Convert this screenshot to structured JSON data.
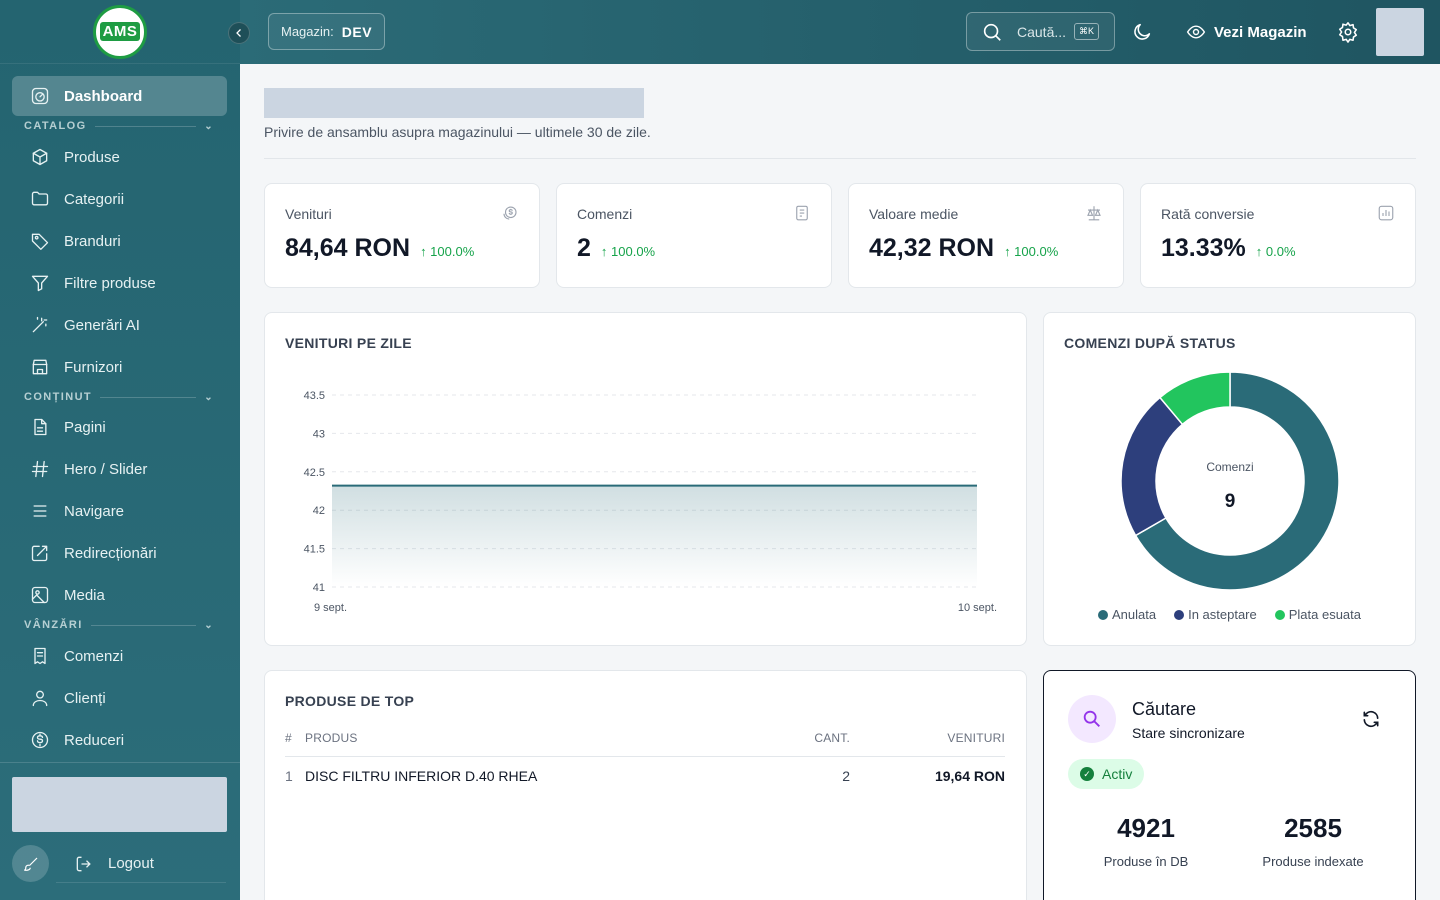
{
  "sidebar": {
    "logo_text": "AMS",
    "items": {
      "dashboard": "Dashboard",
      "products": "Produse",
      "categories": "Categorii",
      "brands": "Branduri",
      "filters": "Filtre produse",
      "ai": "Generări AI",
      "suppliers": "Furnizori",
      "pages": "Pagini",
      "hero": "Hero / Slider",
      "navigation": "Navigare",
      "redirects": "Redirecționări",
      "media": "Media",
      "orders": "Comenzi",
      "clients": "Clienți",
      "discounts": "Reduceri"
    },
    "sections": {
      "catalog": "CATALOG",
      "content": "CONȚINUT",
      "sales": "VÂNZĂRI"
    },
    "logout": "Logout"
  },
  "header": {
    "store_label": "Magazin:",
    "store_value": "DEV",
    "search_placeholder": "Caută...",
    "search_shortcut": "⌘K",
    "view_store": "Vezi Magazin"
  },
  "page": {
    "subtitle": "Privire de ansamblu asupra magazinului — ultimele 30 de zile."
  },
  "stats": [
    {
      "label": "Venituri",
      "value": "84,64 RON",
      "delta": "↑ 100.0%",
      "icon": "money-icon"
    },
    {
      "label": "Comenzi",
      "value": "2",
      "delta": "↑ 100.0%",
      "icon": "receipt-icon"
    },
    {
      "label": "Valoare medie",
      "value": "42,32 RON",
      "delta": "↑ 100.0%",
      "icon": "scale-icon"
    },
    {
      "label": "Rată conversie",
      "value": "13.33%",
      "delta": "↑ 0.0%",
      "icon": "bar-chart-icon"
    }
  ],
  "chart_data": [
    {
      "type": "area",
      "title": "VENITURI PE ZILE",
      "x": [
        "9 sept.",
        "10 sept."
      ],
      "values": [
        42.32,
        42.32
      ],
      "y_ticks": [
        "43.5",
        "43",
        "42.5",
        "42",
        "41.5",
        "41"
      ],
      "ylim": [
        41,
        43.5
      ],
      "grid": true,
      "color": "#2a6b78"
    },
    {
      "type": "pie",
      "title": "COMENZI DUPĂ STATUS",
      "center_label": "Comenzi",
      "center_value": "9",
      "categories": [
        "Anulata",
        "In asteptare",
        "Plata esuata"
      ],
      "values": [
        6,
        2,
        1
      ],
      "colors": [
        "#2a6b78",
        "#2d3f7c",
        "#22c55e"
      ],
      "legend": "bottom"
    }
  ],
  "top_products": {
    "title": "PRODUSE DE TOP",
    "columns": [
      "#",
      "PRODUS",
      "CANT.",
      "VENITURI"
    ],
    "rows": [
      {
        "rank": "1",
        "name": "DISC FILTRU INFERIOR D.40 RHEA",
        "qty": "2",
        "revenue": "19,64 RON"
      }
    ]
  },
  "search_status": {
    "title": "Căutare",
    "subtitle": "Stare sincronizare",
    "status": "Activ",
    "metrics": [
      {
        "value": "4921",
        "label": "Produse în DB"
      },
      {
        "value": "2585",
        "label": "Produse indexate"
      }
    ]
  }
}
